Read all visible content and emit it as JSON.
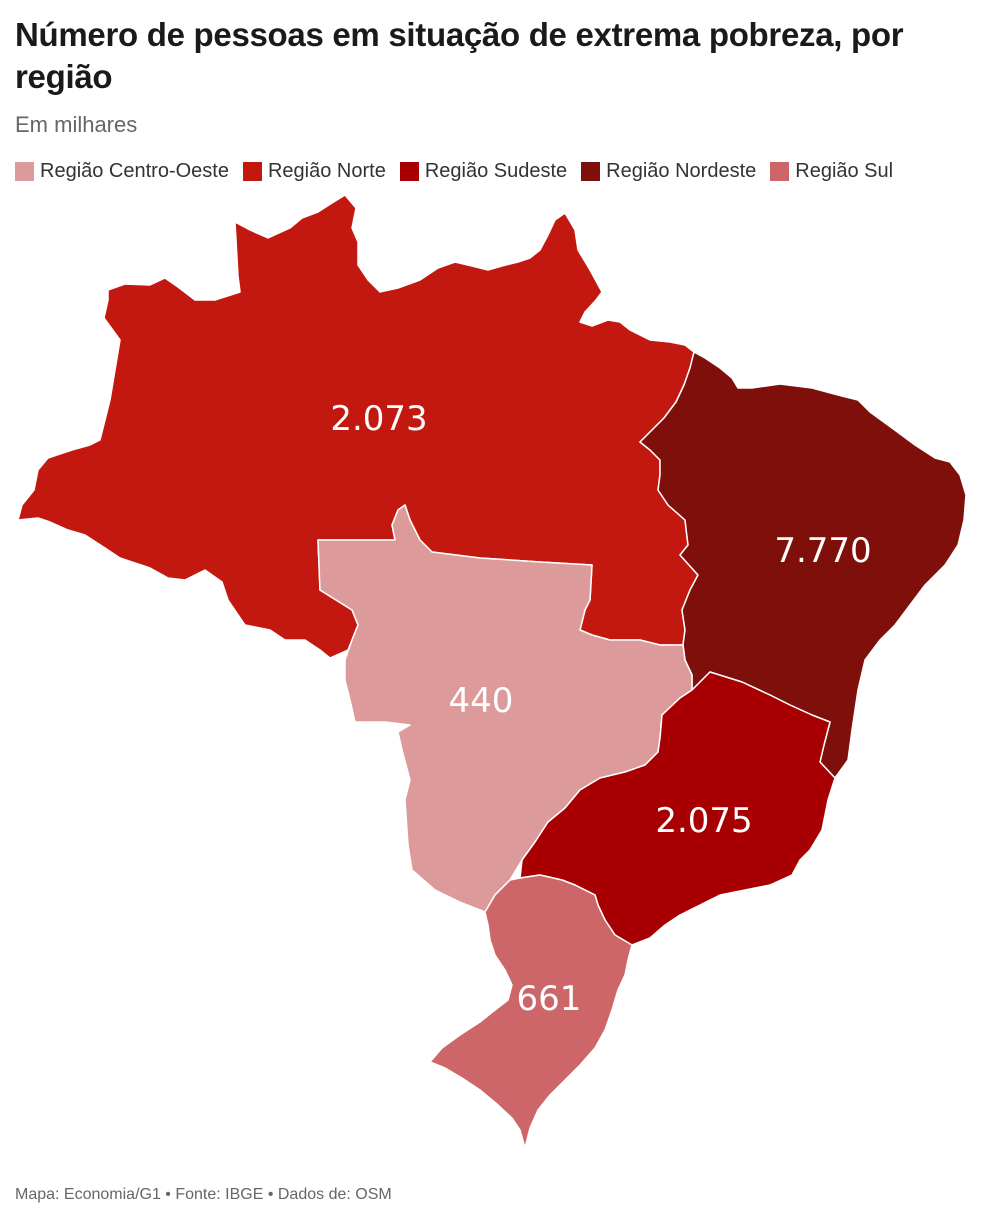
{
  "header": {
    "title": "Número de pessoas em situação de extrema pobreza, por região",
    "subtitle": "Em milhares"
  },
  "legend": [
    {
      "label": "Região Centro-Oeste",
      "color": "#dc9a9b"
    },
    {
      "label": "Região Norte",
      "color": "#c3180f"
    },
    {
      "label": "Região Sudeste",
      "color": "#a80002"
    },
    {
      "label": "Região Nordeste",
      "color": "#7e0f0b"
    },
    {
      "label": "Região Sul",
      "color": "#cd6668"
    }
  ],
  "regions": {
    "norte": {
      "name": "Região Norte",
      "value": "2.073",
      "color": "#c3180f"
    },
    "nordeste": {
      "name": "Região Nordeste",
      "value": "7.770",
      "color": "#7e0f0b"
    },
    "centro_oeste": {
      "name": "Região Centro-Oeste",
      "value": "440",
      "color": "#dc9a9b"
    },
    "sudeste": {
      "name": "Região Sudeste",
      "value": "2.075",
      "color": "#a80002"
    },
    "sul": {
      "name": "Região Sul",
      "value": "661",
      "color": "#cd6668"
    }
  },
  "footer": {
    "credits": "Mapa: Economia/G1 • Fonte: IBGE • Dados de: OSM"
  }
}
